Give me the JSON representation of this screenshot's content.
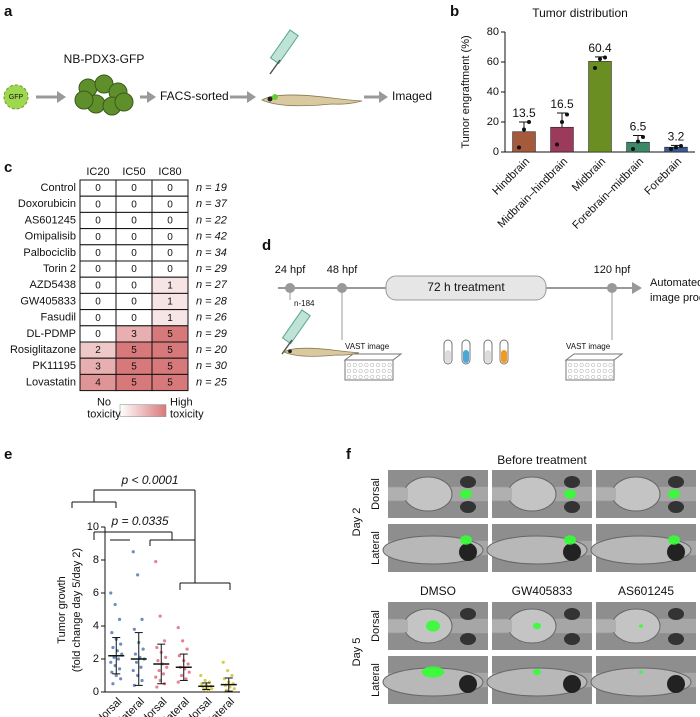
{
  "panel_labels": [
    "a",
    "b",
    "c",
    "d",
    "e",
    "f"
  ],
  "diagram_a": {
    "virus": "GFP",
    "cells": "NB-PDX3-GFP",
    "sort": "FACS-sorted",
    "end": "Imaged"
  },
  "chart_data": [
    {
      "type": "bar",
      "title": "Tumor distribution",
      "ylabel": "Tumor engraftment (%)",
      "categories": [
        "Hindbrain",
        "Midbrain–hindbrain",
        "Midbrain",
        "Forebrain–midbrain",
        "Forebrain"
      ],
      "values": [
        13.5,
        16.5,
        60.4,
        6.5,
        3.2
      ],
      "errors": [
        6.5,
        9.5,
        3,
        4.5,
        1.2
      ],
      "points": [
        [
          3,
          15,
          20
        ],
        [
          5,
          20,
          25
        ],
        [
          56,
          62,
          63
        ],
        [
          2,
          7,
          10
        ],
        [
          2,
          3,
          4
        ]
      ],
      "colors": [
        "#a55a3c",
        "#9c3a5c",
        "#6b8e23",
        "#3a8a6a",
        "#3a5a9a"
      ],
      "ylim": [
        0,
        80
      ],
      "yticks": [
        0,
        20,
        40,
        60,
        80
      ]
    },
    {
      "type": "strip",
      "ylabel": [
        "Tumor growth",
        "(fold change day 5/day 2)"
      ],
      "categories": [
        "DMSO dorsal",
        "DMSO lateral",
        "GW dorsal",
        "GW lateral",
        "AS dorsal",
        "AS lateral"
      ],
      "colors": [
        "#4a6fb0",
        "#4a6fb0",
        "#e0607a",
        "#e0607a",
        "#c9c22a",
        "#c9c22a"
      ],
      "points": [
        [
          6.0,
          5.3,
          4.4,
          3.6,
          3.2,
          2.9,
          2.7,
          2.5,
          2.3,
          2.1,
          2.0,
          1.8,
          1.6,
          1.4,
          1.2,
          1.0,
          0.8,
          0.5
        ],
        [
          8.5,
          7.1,
          4.4,
          3.8,
          3.0,
          2.6,
          2.3,
          2.1,
          2.0,
          1.8,
          1.5,
          1.3,
          1.0,
          0.7,
          0.4
        ],
        [
          7.9,
          4.6,
          3.1,
          2.7,
          2.4,
          2.1,
          1.9,
          1.7,
          1.5,
          1.3,
          1.1,
          0.9,
          0.7,
          0.5,
          0.3
        ],
        [
          3.9,
          3.1,
          2.6,
          2.2,
          1.9,
          1.7,
          1.5,
          1.4,
          1.2,
          1.0,
          0.8,
          0.6
        ],
        [
          1.0,
          0.7,
          0.6,
          0.5,
          0.4,
          0.35,
          0.3,
          0.25,
          0.2,
          0.15,
          0.1
        ],
        [
          1.8,
          1.3,
          1.0,
          0.8,
          0.6,
          0.5,
          0.4,
          0.3,
          0.2,
          0.1
        ]
      ],
      "means": [
        2.2,
        2.0,
        1.7,
        1.5,
        0.35,
        0.45
      ],
      "errors": [
        1.1,
        1.6,
        1.2,
        0.8,
        0.2,
        0.4
      ],
      "annotations": [
        "p < 0.0001",
        "p = 0.0335"
      ],
      "ylim": [
        0,
        10
      ],
      "yticks": [
        0,
        2,
        4,
        6,
        8,
        10
      ]
    }
  ],
  "table_c": {
    "columns": [
      "IC20",
      "IC50",
      "IC80"
    ],
    "color_low": "#ffffff",
    "color_high": "#d7797b",
    "score_max": 5,
    "rows": [
      {
        "drug": "Control",
        "scores": [
          0,
          0,
          0
        ],
        "n": "n = 19"
      },
      {
        "drug": "Doxorubicin",
        "scores": [
          0,
          0,
          0
        ],
        "n": "n = 37"
      },
      {
        "drug": "AS601245",
        "scores": [
          0,
          0,
          0
        ],
        "n": "n = 22"
      },
      {
        "drug": "Omipalisib",
        "scores": [
          0,
          0,
          0
        ],
        "n": "n = 42"
      },
      {
        "drug": "Palbociclib",
        "scores": [
          0,
          0,
          0
        ],
        "n": "n = 34"
      },
      {
        "drug": "Torin 2",
        "scores": [
          0,
          0,
          0
        ],
        "n": "n = 29"
      },
      {
        "drug": "AZD5438",
        "scores": [
          0,
          0,
          1
        ],
        "n": "n = 27"
      },
      {
        "drug": "GW405833",
        "scores": [
          0,
          0,
          1
        ],
        "n": "n = 28"
      },
      {
        "drug": "Fasudil",
        "scores": [
          0,
          0,
          1
        ],
        "n": "n = 26"
      },
      {
        "drug": "DL-PDMP",
        "scores": [
          0,
          3,
          5
        ],
        "n": "n = 29"
      },
      {
        "drug": "Rosiglitazone",
        "scores": [
          2,
          5,
          5
        ],
        "n": "n = 20"
      },
      {
        "drug": "PK11195",
        "scores": [
          3,
          5,
          5
        ],
        "n": "n = 30"
      },
      {
        "drug": "Lovastatin",
        "scores": [
          4,
          5,
          5
        ],
        "n": "n = 25"
      }
    ],
    "legend": {
      "low": [
        "No",
        "toxicity"
      ],
      "high": [
        "High",
        "toxicity"
      ]
    }
  },
  "diagram_d": {
    "t1": "24 hpf",
    "t2": "48 hpf",
    "treatment": "72 h treatment",
    "t3": "120 hpf",
    "output": [
      "Automated",
      "image processing"
    ],
    "n": "n-184",
    "vast1": "VAST image",
    "vast2": "VAST image"
  },
  "images_f": {
    "title": "Before treatment",
    "days": [
      "Day 2",
      "Day 5"
    ],
    "views": [
      "Dorsal",
      "Lateral"
    ],
    "treatments": [
      "DMSO",
      "GW405833",
      "AS601245"
    ]
  }
}
